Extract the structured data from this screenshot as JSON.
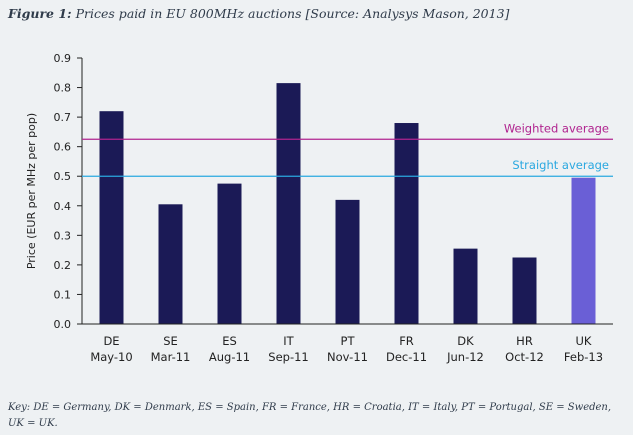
{
  "figure": {
    "label": "Figure 1:",
    "title": "Prices paid in EU 800MHz auctions [Source: Analysys Mason, 2013]",
    "key": "Key: DE = Germany, DK = Denmark, ES = Spain, FR = France, HR = Croatia, IT = Italy, PT = Portugal, SE = Sweden, UK = UK."
  },
  "colors": {
    "bar": "#1b1a56",
    "bar_highlight": "#6a5fd6",
    "weighted_line": "#b0248f",
    "straight_line": "#2aa8e0",
    "axis_text": "#222222"
  },
  "chart_data": {
    "type": "bar",
    "categories": [
      [
        "DE",
        "May-10"
      ],
      [
        "SE",
        "Mar-11"
      ],
      [
        "ES",
        "Aug-11"
      ],
      [
        "IT",
        "Sep-11"
      ],
      [
        "PT",
        "Nov-11"
      ],
      [
        "FR",
        "Dec-11"
      ],
      [
        "DK",
        "Jun-12"
      ],
      [
        "HR",
        "Oct-12"
      ],
      [
        "UK",
        "Feb-13"
      ]
    ],
    "values": [
      0.72,
      0.405,
      0.475,
      0.815,
      0.42,
      0.68,
      0.255,
      0.225,
      0.495
    ],
    "highlight_index": 8,
    "ylabel": "Price (EUR per MHz per pop)",
    "xlabel": "",
    "ylim": [
      0,
      0.9
    ],
    "yticks": [
      "0.0",
      "0.1",
      "0.2",
      "0.3",
      "0.4",
      "0.5",
      "0.6",
      "0.7",
      "0.8",
      "0.9"
    ],
    "reference_lines": [
      {
        "name": "Weighted average",
        "value": 0.625,
        "color": "#b0248f"
      },
      {
        "name": "Straight average",
        "value": 0.5,
        "color": "#2aa8e0"
      }
    ],
    "grid": false
  }
}
